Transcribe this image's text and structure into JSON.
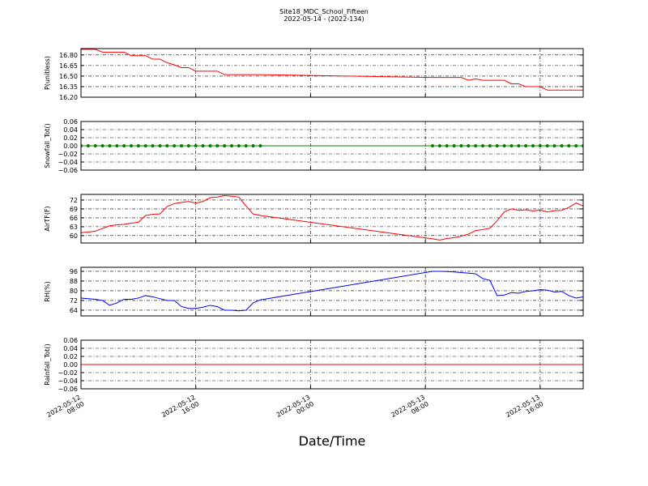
{
  "chart_data": {
    "type": "line",
    "title": "Site18_MDC_School_Fifteen",
    "subtitle": "2022-05-14 - (2022-134)",
    "xlabel": "Date/Time",
    "grid": true,
    "x": [
      "2022-05-12 08:00",
      "2022-05-12 08:30",
      "2022-05-12 09:00",
      "2022-05-12 09:30",
      "2022-05-12 10:00",
      "2022-05-12 10:30",
      "2022-05-12 11:00",
      "2022-05-12 11:30",
      "2022-05-12 12:00",
      "2022-05-12 12:30",
      "2022-05-12 13:00",
      "2022-05-12 13:30",
      "2022-05-12 14:00",
      "2022-05-12 14:30",
      "2022-05-12 15:00",
      "2022-05-12 15:30",
      "2022-05-12 16:00",
      "2022-05-12 16:30",
      "2022-05-12 17:00",
      "2022-05-12 17:30",
      "2022-05-12 18:00",
      "2022-05-12 18:30",
      "2022-05-12 19:00",
      "2022-05-12 19:30",
      "2022-05-12 20:00",
      "2022-05-12 20:30",
      "2022-05-13 08:30",
      "2022-05-13 09:00",
      "2022-05-13 09:30",
      "2022-05-13 10:00",
      "2022-05-13 10:30",
      "2022-05-13 11:00",
      "2022-05-13 11:30",
      "2022-05-13 12:00",
      "2022-05-13 12:30",
      "2022-05-13 13:00",
      "2022-05-13 13:30",
      "2022-05-13 14:00",
      "2022-05-13 14:30",
      "2022-05-13 15:00",
      "2022-05-13 15:30",
      "2022-05-13 16:00",
      "2022-05-13 16:30",
      "2022-05-13 17:00",
      "2022-05-13 17:30",
      "2022-05-13 18:00",
      "2022-05-13 18:30",
      "2022-05-13 19:00"
    ],
    "xlim": [
      "2022-05-12 08:00",
      "2022-05-13 19:00"
    ],
    "xticks": [
      "2022-05-12 08:00",
      "2022-05-12 16:00",
      "2022-05-13 00:00",
      "2022-05-13 08:00",
      "2022-05-13 16:00"
    ],
    "panels": [
      {
        "ylabel": "P(unitless)",
        "ylim": [
          16.2,
          16.89
        ],
        "yticks": [
          {
            "value": 16.2,
            "label": "16.20"
          },
          16.35,
          {
            "value": 16.5,
            "label": "16.50"
          },
          16.65,
          {
            "value": 16.8,
            "label": "16.80"
          }
        ],
        "series": [
          {
            "color": "#ff0000",
            "values": [
              16.88,
              16.88,
              16.88,
              16.84,
              16.84,
              16.84,
              16.84,
              16.79,
              16.79,
              16.79,
              16.74,
              16.74,
              16.69,
              16.66,
              16.62,
              16.62,
              16.57,
              16.57,
              16.57,
              16.57,
              16.52,
              16.52,
              16.52,
              16.52,
              16.52,
              16.52,
              16.48,
              16.48,
              16.48,
              16.48,
              16.48,
              16.44,
              16.46,
              16.44,
              16.44,
              16.44,
              16.44,
              16.39,
              16.39,
              16.35,
              16.35,
              16.35,
              16.3,
              16.3,
              16.3,
              16.3,
              16.3,
              16.3
            ]
          }
        ]
      },
      {
        "ylabel": "Snowfall_Tot()",
        "ylim": [
          -0.06,
          0.06
        ],
        "yticks": [
          {
            "value": -0.06,
            "label": "−0.06"
          },
          {
            "value": -0.04,
            "label": "−0.04"
          },
          {
            "value": -0.02,
            "label": "−0.02"
          },
          {
            "value": 0,
            "label": "0.00"
          },
          0.02,
          0.04,
          0.06
        ],
        "series": [
          {
            "color": "#008000",
            "marker": "o",
            "values": [
              0,
              0,
              0,
              0,
              0,
              0,
              0,
              0,
              0,
              0,
              0,
              0,
              0,
              0,
              0,
              0,
              0,
              0,
              0,
              0,
              0,
              0,
              0,
              0,
              0,
              0,
              0,
              0,
              0,
              0,
              0,
              0,
              0,
              0,
              0,
              0,
              0,
              0,
              0,
              0,
              0,
              0,
              0,
              0,
              0,
              0,
              0,
              0
            ]
          }
        ]
      },
      {
        "ylabel": "AirTF(F)",
        "ylim": [
          57.5,
          73.9
        ],
        "yticks": [
          60,
          63,
          66,
          69,
          72
        ],
        "series": [
          {
            "color": "#ff0000",
            "values": [
              61,
              61.2,
              61.5,
              62.4,
              63.3,
              63.6,
              63.8,
              64.2,
              64.5,
              66.8,
              67.2,
              67.3,
              69.8,
              70.8,
              71.2,
              71.5,
              71,
              71.5,
              72.8,
              73,
              73.5,
              73.3,
              73,
              70,
              67.3,
              66.8,
              58.9,
              58.5,
              59,
              59.3,
              59.8,
              60.5,
              61.7,
              62,
              62.5,
              65,
              68,
              69,
              68.5,
              68.7,
              68.3,
              68.6,
              68,
              68.4,
              68.5,
              69.5,
              71,
              70
            ]
          }
        ]
      },
      {
        "ylabel": "RH(%)",
        "ylim": [
          59.3,
          99.3
        ],
        "yticks": [
          64,
          72,
          80,
          88,
          96
        ],
        "series": [
          {
            "color": "#0000ff",
            "values": [
              74,
              73.5,
              73,
              72,
              68,
              70,
              73,
              73,
              74,
              76,
              75,
              73.5,
              72,
              72,
              67,
              65.5,
              65.5,
              66.5,
              68,
              67,
              64,
              64,
              63.5,
              64,
              70,
              72.5,
              96,
              96,
              95.8,
              95.5,
              95,
              94.5,
              94,
              90,
              88.5,
              76,
              76.5,
              78.5,
              78,
              79.5,
              80,
              81,
              80.5,
              79,
              79.5,
              76,
              74,
              75
            ]
          }
        ]
      },
      {
        "ylabel": "Rainfall_Tot()",
        "ylim": [
          -0.06,
          0.06
        ],
        "yticks": [
          {
            "value": -0.06,
            "label": "−0.06"
          },
          {
            "value": -0.04,
            "label": "−0.04"
          },
          {
            "value": -0.02,
            "label": "−0.02"
          },
          {
            "value": 0,
            "label": "0.00"
          },
          0.02,
          0.04,
          0.06
        ],
        "series": [
          {
            "color": "#ff0000",
            "values": [
              0,
              0,
              0,
              0,
              0,
              0,
              0,
              0,
              0,
              0,
              0,
              0,
              0,
              0,
              0,
              0,
              0,
              0,
              0,
              0,
              0,
              0,
              0,
              0,
              0,
              0,
              0,
              0,
              0,
              0,
              0,
              0,
              0,
              0,
              0,
              0,
              0,
              0,
              0,
              0,
              0,
              0,
              0,
              0,
              0,
              0,
              0,
              0
            ]
          }
        ]
      }
    ]
  }
}
